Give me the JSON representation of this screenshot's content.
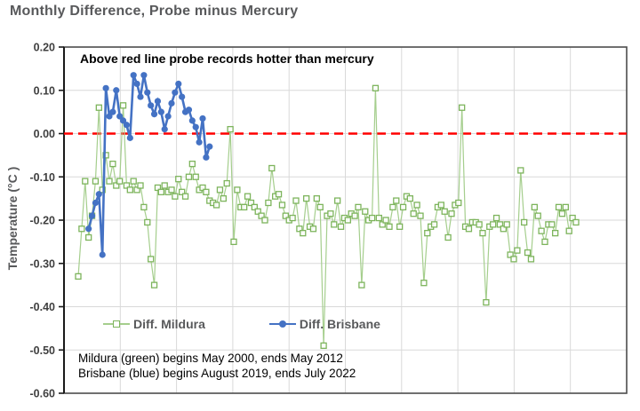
{
  "title": "Monthly Difference, Probe minus Mercury",
  "annotations": {
    "above_zero_line": "Above red line probe records hotter than mercury",
    "mildura_range": "Mildura (green) begins May 2000, ends May 2012",
    "brisbane_range": "Brisbane (blue) begins August 2019, ends July 2022"
  },
  "colors": {
    "title_gray": "#58595b",
    "tick_label": "#3f3f3f",
    "gridline": "#d9d9d9",
    "border": "#4d4d4d",
    "zero_line_red": "#ff0000",
    "mildura_green_line": "#a5ce8d",
    "mildura_green_marker": "#7db45c",
    "brisbane_blue": "#4472c4"
  },
  "chart_data": {
    "type": "line",
    "title": "Monthly Difference, Probe minus Mercury",
    "xlabel": "",
    "ylabel": "Temperature (°C )",
    "ylim": [
      -0.6,
      0.2
    ],
    "y_tick_step": 0.1,
    "y_tick_labels": [
      "0.20",
      "0.10",
      "0.00",
      "-0.10",
      "-0.20",
      "-0.30",
      "-0.40",
      "-0.50",
      "-0.60"
    ],
    "x_axis": {
      "tick_labels_visible": false,
      "n_categories": 145,
      "vertical_grid_divisions": 10
    },
    "grid": true,
    "legend_position": "inside-bottom-left",
    "zero_reference_line": {
      "value": 0.0,
      "style": "dashed",
      "color": "#ff0000"
    },
    "series": [
      {
        "name": "Diff. Mildura",
        "marker": "open-square",
        "line_color": "#a5ce8d",
        "marker_color": "#7db45c",
        "start_label": "May 2000",
        "end_label": "May 2012",
        "x_start_index": 0,
        "values": [
          -0.33,
          -0.22,
          -0.11,
          -0.24,
          -0.19,
          -0.11,
          0.06,
          -0.13,
          -0.05,
          -0.11,
          -0.07,
          -0.12,
          -0.11,
          0.065,
          -0.12,
          -0.13,
          -0.11,
          -0.13,
          -0.12,
          -0.17,
          -0.205,
          -0.29,
          -0.35,
          -0.125,
          -0.135,
          -0.12,
          -0.135,
          -0.13,
          -0.145,
          -0.105,
          -0.135,
          -0.145,
          -0.1,
          -0.07,
          -0.1,
          -0.13,
          -0.125,
          -0.135,
          -0.155,
          -0.16,
          -0.165,
          -0.13,
          -0.15,
          -0.115,
          0.01,
          -0.25,
          -0.13,
          -0.17,
          -0.17,
          -0.145,
          -0.16,
          -0.17,
          -0.18,
          -0.19,
          -0.2,
          -0.16,
          -0.08,
          -0.145,
          -0.14,
          -0.165,
          -0.19,
          -0.2,
          -0.195,
          -0.155,
          -0.22,
          -0.23,
          -0.15,
          -0.215,
          -0.22,
          -0.15,
          -0.17,
          -0.49,
          -0.19,
          -0.185,
          -0.21,
          -0.155,
          -0.215,
          -0.195,
          -0.2,
          -0.185,
          -0.19,
          -0.17,
          -0.35,
          -0.18,
          -0.2,
          -0.195,
          0.105,
          -0.195,
          -0.21,
          -0.2,
          -0.215,
          -0.17,
          -0.155,
          -0.215,
          -0.17,
          -0.145,
          -0.15,
          -0.185,
          -0.165,
          -0.19,
          -0.345,
          -0.23,
          -0.215,
          -0.21,
          -0.17,
          -0.165,
          -0.18,
          -0.24,
          -0.185,
          -0.165,
          -0.16,
          0.06,
          -0.215,
          -0.22,
          -0.205,
          -0.205,
          -0.21,
          -0.23,
          -0.39,
          -0.215,
          -0.21,
          -0.195,
          -0.21,
          -0.22,
          -0.21,
          -0.28,
          -0.29,
          -0.27,
          -0.085,
          -0.205,
          -0.275,
          -0.29,
          -0.17,
          -0.19,
          -0.225,
          -0.25,
          -0.21,
          -0.21,
          -0.23,
          -0.17,
          -0.185,
          -0.17,
          -0.225,
          -0.195,
          -0.205
        ]
      },
      {
        "name": "Diff. Brisbane",
        "marker": "filled-circle",
        "line_color": "#4472c4",
        "marker_color": "#4472c4",
        "start_label": "August 2019",
        "end_label": "July 2022",
        "x_start_index": 3,
        "values": [
          -0.22,
          -0.19,
          -0.16,
          -0.14,
          -0.28,
          0.105,
          0.04,
          0.05,
          0.1,
          0.04,
          0.03,
          0.02,
          -0.01,
          0.135,
          0.115,
          0.085,
          0.135,
          0.095,
          0.065,
          0.045,
          0.075,
          0.05,
          0.01,
          0.04,
          0.07,
          0.095,
          0.115,
          0.085,
          0.05,
          0.055,
          0.03,
          0.015,
          -0.02,
          0.035,
          -0.055,
          -0.03
        ]
      }
    ]
  }
}
